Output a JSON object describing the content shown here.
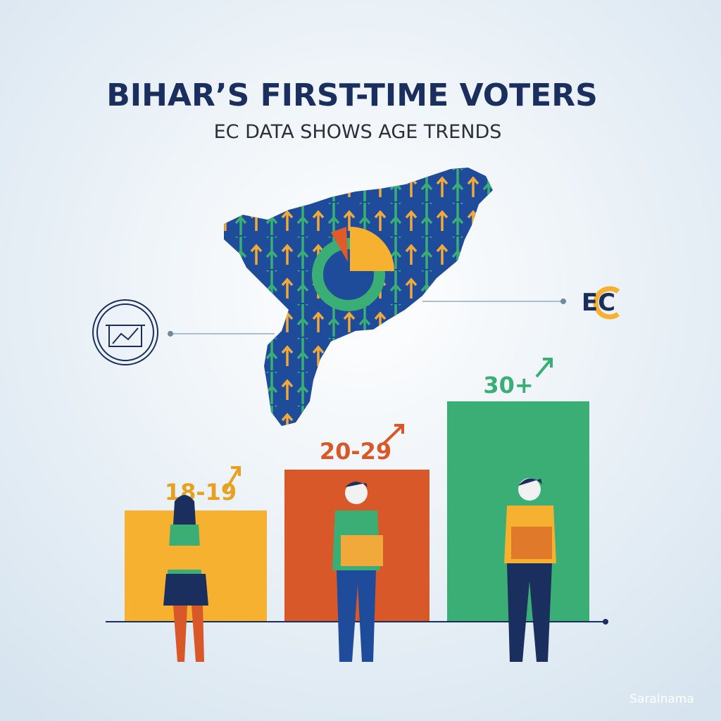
{
  "header": {
    "title": "BIHAR’S FIRST-TIME VOTERS",
    "subtitle": "EC DATA SHOWS AGE TRENDS"
  },
  "logo": {
    "text": "EC"
  },
  "groups": [
    {
      "label": "18-19"
    },
    {
      "label": "20-29"
    },
    {
      "label": "30+"
    }
  ],
  "watermark": "Saralnama"
}
